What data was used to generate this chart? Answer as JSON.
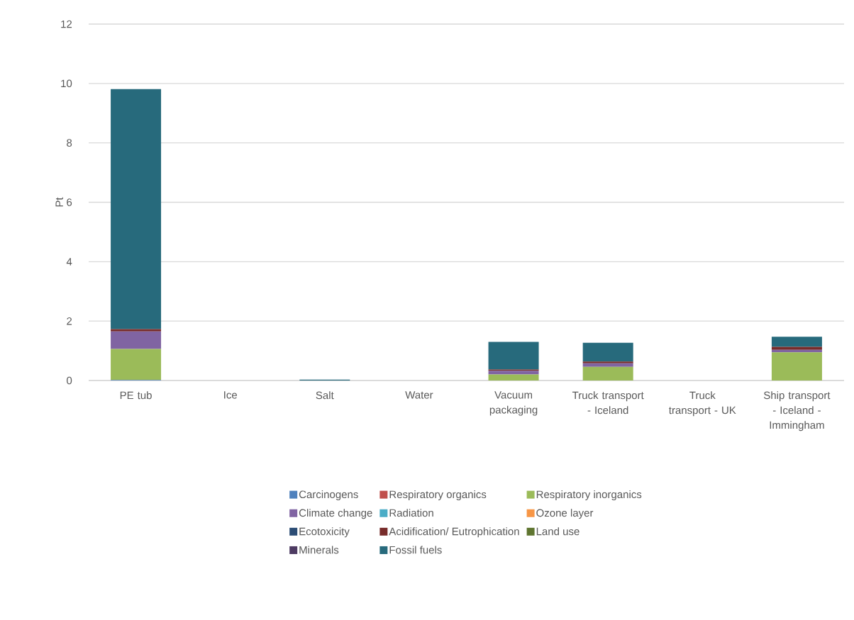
{
  "chart_data": {
    "type": "bar",
    "stacked": true,
    "ylabel": "Pt",
    "categories": [
      "PE tub",
      "Ice",
      "Salt",
      "Water",
      "Vacuum packaging",
      "Truck transport - Iceland",
      "Truck transport - UK",
      "Ship transport - Iceland - Immingham"
    ],
    "series": [
      {
        "name": "Carcinogens",
        "color": "#4f81bd",
        "values": [
          0.02,
          0,
          0,
          0,
          0,
          0,
          0,
          0
        ]
      },
      {
        "name": "Respiratory organics",
        "color": "#c0504d",
        "values": [
          0,
          0,
          0,
          0,
          0,
          0,
          0,
          0
        ]
      },
      {
        "name": "Respiratory inorganics",
        "color": "#9bbb59",
        "values": [
          1.04,
          0,
          0,
          0,
          0.2,
          0.46,
          0,
          0.95
        ]
      },
      {
        "name": "Climate change",
        "color": "#8064a2",
        "values": [
          0.59,
          0,
          0,
          0,
          0.13,
          0.12,
          0,
          0.08
        ]
      },
      {
        "name": "Radiation",
        "color": "#4bacc6",
        "values": [
          0,
          0,
          0,
          0,
          0,
          0,
          0,
          0
        ]
      },
      {
        "name": "Ozone layer",
        "color": "#f79646",
        "values": [
          0,
          0,
          0,
          0,
          0,
          0,
          0,
          0
        ]
      },
      {
        "name": "Ecotoxicity",
        "color": "#2c4d75",
        "values": [
          0,
          0,
          0,
          0,
          0,
          0,
          0,
          0
        ]
      },
      {
        "name": "Acidification/ Eutrophication",
        "color": "#772c2a",
        "values": [
          0.08,
          0,
          0,
          0,
          0.04,
          0.06,
          0,
          0.1
        ]
      },
      {
        "name": "Land use",
        "color": "#5f7530",
        "values": [
          0,
          0,
          0,
          0,
          0,
          0,
          0,
          0
        ]
      },
      {
        "name": "Minerals",
        "color": "#4d3b62",
        "values": [
          0,
          0,
          0,
          0,
          0,
          0,
          0,
          0
        ]
      },
      {
        "name": "Fossil fuels",
        "color": "#276a7c",
        "values": [
          8.08,
          null,
          0.03,
          0,
          0.93,
          0.63,
          null,
          0.34
        ]
      }
    ],
    "ylim": [
      0,
      12
    ],
    "yticks": [
      0,
      2,
      4,
      6,
      8,
      10,
      12
    ],
    "grid": "y",
    "legend": "bottom"
  }
}
